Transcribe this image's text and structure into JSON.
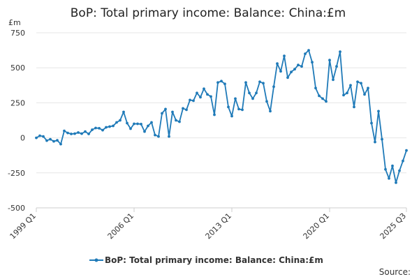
{
  "chart_data": {
    "type": "line",
    "title": "BoP: Total primary income: Balance: China:£m",
    "unit": "£m",
    "ylim": [
      -500,
      750
    ],
    "yticks": [
      "750",
      "500",
      "250",
      "0",
      "-250",
      "-500"
    ],
    "x_tick_labels": [
      "1999 Q1",
      "2006 Q1",
      "2013 Q1",
      "2020 Q1",
      "2025 Q3"
    ],
    "grid": true,
    "legend_position": "bottom",
    "source_label": "Source:",
    "series": [
      {
        "name": "BoP: Total primary income: Balance: China:£m",
        "color": "#1f7ab8",
        "x_start": "1999 Q1",
        "x_end": "2025 Q3",
        "values": [
          0,
          15,
          10,
          -20,
          -10,
          -25,
          -18,
          -45,
          50,
          35,
          28,
          30,
          38,
          30,
          45,
          28,
          58,
          70,
          68,
          55,
          75,
          80,
          85,
          110,
          125,
          185,
          105,
          65,
          100,
          100,
          98,
          45,
          85,
          110,
          20,
          10,
          175,
          205,
          10,
          185,
          125,
          115,
          210,
          200,
          270,
          265,
          320,
          290,
          350,
          310,
          295,
          165,
          395,
          405,
          385,
          220,
          155,
          280,
          205,
          200,
          395,
          320,
          280,
          320,
          400,
          390,
          260,
          190,
          365,
          530,
          475,
          585,
          430,
          470,
          490,
          520,
          510,
          600,
          625,
          540,
          355,
          300,
          280,
          260,
          555,
          415,
          510,
          615,
          305,
          320,
          375,
          220,
          400,
          390,
          310,
          355,
          105,
          -30,
          190,
          -10,
          -225,
          -290,
          -200,
          -320,
          -235,
          -165,
          -90
        ]
      }
    ]
  }
}
